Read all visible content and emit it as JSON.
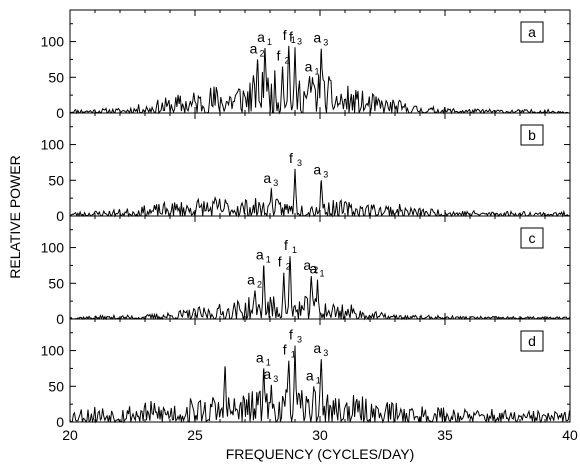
{
  "figure": {
    "xlabel": "FREQUENCY (CYCLES/DAY)",
    "ylabel": "RELATIVE POWER"
  },
  "chart_data": {
    "type": "line",
    "xlim": [
      20,
      40
    ],
    "ylim": [
      0,
      140
    ],
    "x_ticks": [
      20,
      25,
      30,
      35,
      40
    ],
    "y_ticks": [
      0,
      50,
      100
    ],
    "grid": false,
    "panels": [
      {
        "label": "a",
        "noise_seed": 11,
        "envelope": [
          [
            20,
            6
          ],
          [
            22,
            7
          ],
          [
            23,
            14
          ],
          [
            24,
            24
          ],
          [
            25,
            34
          ],
          [
            26,
            44
          ],
          [
            27,
            54
          ],
          [
            28,
            60
          ],
          [
            29,
            62
          ],
          [
            30,
            58
          ],
          [
            31,
            40
          ],
          [
            32,
            28
          ],
          [
            33,
            20
          ],
          [
            34,
            10
          ],
          [
            36,
            6
          ],
          [
            38,
            5
          ],
          [
            40,
            5
          ]
        ],
        "peaks": [
          {
            "x": 27.5,
            "y": 75,
            "label": "a",
            "sub": "2"
          },
          {
            "x": 27.8,
            "y": 91,
            "label": "a",
            "sub": "1"
          },
          {
            "x": 28.5,
            "y": 65,
            "label": "f",
            "sub": "2"
          },
          {
            "x": 28.75,
            "y": 94,
            "label": "f",
            "sub": "1"
          },
          {
            "x": 29.0,
            "y": 92,
            "label": "f",
            "sub": "3"
          },
          {
            "x": 29.7,
            "y": 50,
            "label": "a",
            "sub": "1"
          },
          {
            "x": 30.05,
            "y": 90,
            "label": "a",
            "sub": "3"
          }
        ]
      },
      {
        "label": "b",
        "noise_seed": 23,
        "envelope": [
          [
            20,
            6
          ],
          [
            22,
            10
          ],
          [
            24,
            20
          ],
          [
            25,
            26
          ],
          [
            26,
            28
          ],
          [
            28,
            24
          ],
          [
            30,
            24
          ],
          [
            31,
            22
          ],
          [
            32,
            20
          ],
          [
            33,
            18
          ],
          [
            34,
            12
          ],
          [
            36,
            8
          ],
          [
            40,
            6
          ]
        ],
        "peaks": [
          {
            "x": 28.05,
            "y": 38,
            "label": "a",
            "sub": "3"
          },
          {
            "x": 29.0,
            "y": 66,
            "label": "f",
            "sub": "3"
          },
          {
            "x": 30.05,
            "y": 50,
            "label": "a",
            "sub": "3"
          }
        ]
      },
      {
        "label": "c",
        "noise_seed": 37,
        "envelope": [
          [
            20,
            4
          ],
          [
            23,
            6
          ],
          [
            25,
            16
          ],
          [
            26,
            22
          ],
          [
            27,
            30
          ],
          [
            28,
            34
          ],
          [
            29,
            34
          ],
          [
            30,
            30
          ],
          [
            31,
            24
          ],
          [
            32,
            12
          ],
          [
            33,
            6
          ],
          [
            36,
            4
          ],
          [
            40,
            3
          ]
        ],
        "peaks": [
          {
            "x": 27.4,
            "y": 40,
            "label": "a",
            "sub": "2"
          },
          {
            "x": 27.75,
            "y": 75,
            "label": "a",
            "sub": "1"
          },
          {
            "x": 28.55,
            "y": 65,
            "label": "f",
            "sub": "2"
          },
          {
            "x": 28.8,
            "y": 88,
            "label": "f",
            "sub": "1"
          },
          {
            "x": 29.65,
            "y": 60,
            "label": "a",
            "sub": "2"
          },
          {
            "x": 29.9,
            "y": 55,
            "label": "a",
            "sub": "1"
          }
        ]
      },
      {
        "label": "d",
        "noise_seed": 53,
        "envelope": [
          [
            20,
            22
          ],
          [
            22,
            26
          ],
          [
            24,
            32
          ],
          [
            26,
            40
          ],
          [
            27,
            44
          ],
          [
            28,
            46
          ],
          [
            29,
            46
          ],
          [
            30,
            44
          ],
          [
            31,
            40
          ],
          [
            32,
            34
          ],
          [
            33,
            30
          ],
          [
            34,
            24
          ],
          [
            36,
            20
          ],
          [
            38,
            16
          ],
          [
            40,
            16
          ]
        ],
        "peaks": [
          {
            "x": 26.2,
            "y": 78,
            "label": null,
            "sub": null
          },
          {
            "x": 27.75,
            "y": 75,
            "label": "a",
            "sub": "1"
          },
          {
            "x": 28.05,
            "y": 52,
            "label": "a",
            "sub": "3"
          },
          {
            "x": 28.75,
            "y": 86,
            "label": "f",
            "sub": "1"
          },
          {
            "x": 29.0,
            "y": 107,
            "label": "f",
            "sub": "3"
          },
          {
            "x": 29.75,
            "y": 50,
            "label": "a",
            "sub": "1"
          },
          {
            "x": 30.05,
            "y": 88,
            "label": "a",
            "sub": "3"
          }
        ]
      }
    ]
  }
}
